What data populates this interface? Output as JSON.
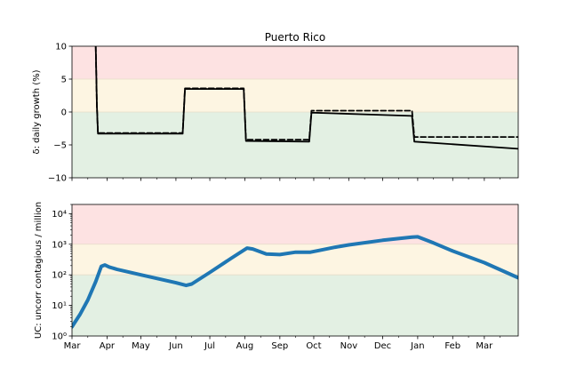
{
  "chart_data": [
    {
      "type": "line",
      "title": "Puerto Rico",
      "ylabel": "δ: daily growth (%)",
      "ylim": [
        -10,
        10
      ],
      "yticks": [
        "−10",
        "−5",
        "0",
        "5",
        "10"
      ],
      "ytick_values": [
        -10,
        -5,
        0,
        5,
        10
      ],
      "bands": [
        {
          "from": 5,
          "to": 10,
          "color": "#fde2e2"
        },
        {
          "from": 0,
          "to": 5,
          "color": "#fdf5e2"
        },
        {
          "from": -10,
          "to": 0,
          "color": "#e3f0e3"
        }
      ],
      "x_range": [
        "2020-03-01",
        "2021-03-31"
      ],
      "series": [
        {
          "style": "solid",
          "color": "#000000",
          "x": [
            "2020-03-22",
            "2020-03-23",
            "2020-03-24",
            "2020-06-07",
            "2020-06-09",
            "2020-07-31",
            "2020-08-02",
            "2020-09-27",
            "2020-09-29",
            "2020-12-27",
            "2020-12-29",
            "2021-03-31"
          ],
          "y": [
            10,
            1,
            -3.3,
            -3.3,
            3.5,
            3.5,
            -4.4,
            -4.5,
            -0.1,
            -0.6,
            -4.5,
            -5.6
          ]
        },
        {
          "style": "dashed",
          "color": "#000000",
          "x": [
            "2020-03-22",
            "2020-03-23",
            "2020-03-24",
            "2020-06-07",
            "2020-06-09",
            "2020-07-31",
            "2020-08-02",
            "2020-09-27",
            "2020-09-29",
            "2020-12-27",
            "2020-12-29",
            "2021-03-31"
          ],
          "y": [
            10,
            1,
            -3.2,
            -3.2,
            3.6,
            3.6,
            -4.2,
            -4.2,
            0.2,
            0.2,
            -3.8,
            -3.8
          ]
        }
      ]
    },
    {
      "type": "line",
      "ylabel": "UC: uncorr contagious / million",
      "yscale": "log",
      "ylim": [
        1,
        20000
      ],
      "yticks": [
        "10⁰",
        "10¹",
        "10²",
        "10³",
        "10⁴"
      ],
      "ytick_values": [
        1,
        10,
        100,
        1000,
        10000
      ],
      "bands": [
        {
          "from": 1000,
          "to": 20000,
          "color": "#fde2e2"
        },
        {
          "from": 100,
          "to": 1000,
          "color": "#fdf5e2"
        },
        {
          "from": 1,
          "to": 100,
          "color": "#e3f0e3"
        }
      ],
      "xticks": [
        "Mar",
        "Apr",
        "May",
        "Jun",
        "Jul",
        "Aug",
        "Sep",
        "Oct",
        "Nov",
        "Dec",
        "Jan",
        "Feb",
        "Mar"
      ],
      "xtick_dates": [
        "2020-03-01",
        "2020-04-01",
        "2020-05-01",
        "2020-06-01",
        "2020-07-01",
        "2020-08-01",
        "2020-09-01",
        "2020-10-01",
        "2020-11-01",
        "2020-12-01",
        "2021-01-01",
        "2021-02-01",
        "2021-03-01"
      ],
      "x_range": [
        "2020-03-01",
        "2021-03-31"
      ],
      "series": [
        {
          "style": "solid",
          "color": "#1f77b4",
          "x": [
            "2020-03-01",
            "2020-03-08",
            "2020-03-15",
            "2020-03-22",
            "2020-03-27",
            "2020-03-30",
            "2020-04-03",
            "2020-04-10",
            "2020-05-01",
            "2020-06-01",
            "2020-06-10",
            "2020-06-15",
            "2020-07-01",
            "2020-07-20",
            "2020-08-03",
            "2020-08-08",
            "2020-08-20",
            "2020-09-01",
            "2020-09-15",
            "2020-09-28",
            "2020-10-05",
            "2020-10-20",
            "2020-11-01",
            "2020-12-01",
            "2020-12-27",
            "2021-01-01",
            "2021-01-15",
            "2021-02-01",
            "2021-03-01",
            "2021-03-31"
          ],
          "y": [
            2,
            5,
            15,
            60,
            190,
            210,
            180,
            150,
            100,
            55,
            45,
            50,
            120,
            350,
            750,
            700,
            480,
            460,
            550,
            550,
            620,
            800,
            950,
            1350,
            1700,
            1750,
            1100,
            600,
            250,
            80
          ]
        }
      ]
    }
  ]
}
